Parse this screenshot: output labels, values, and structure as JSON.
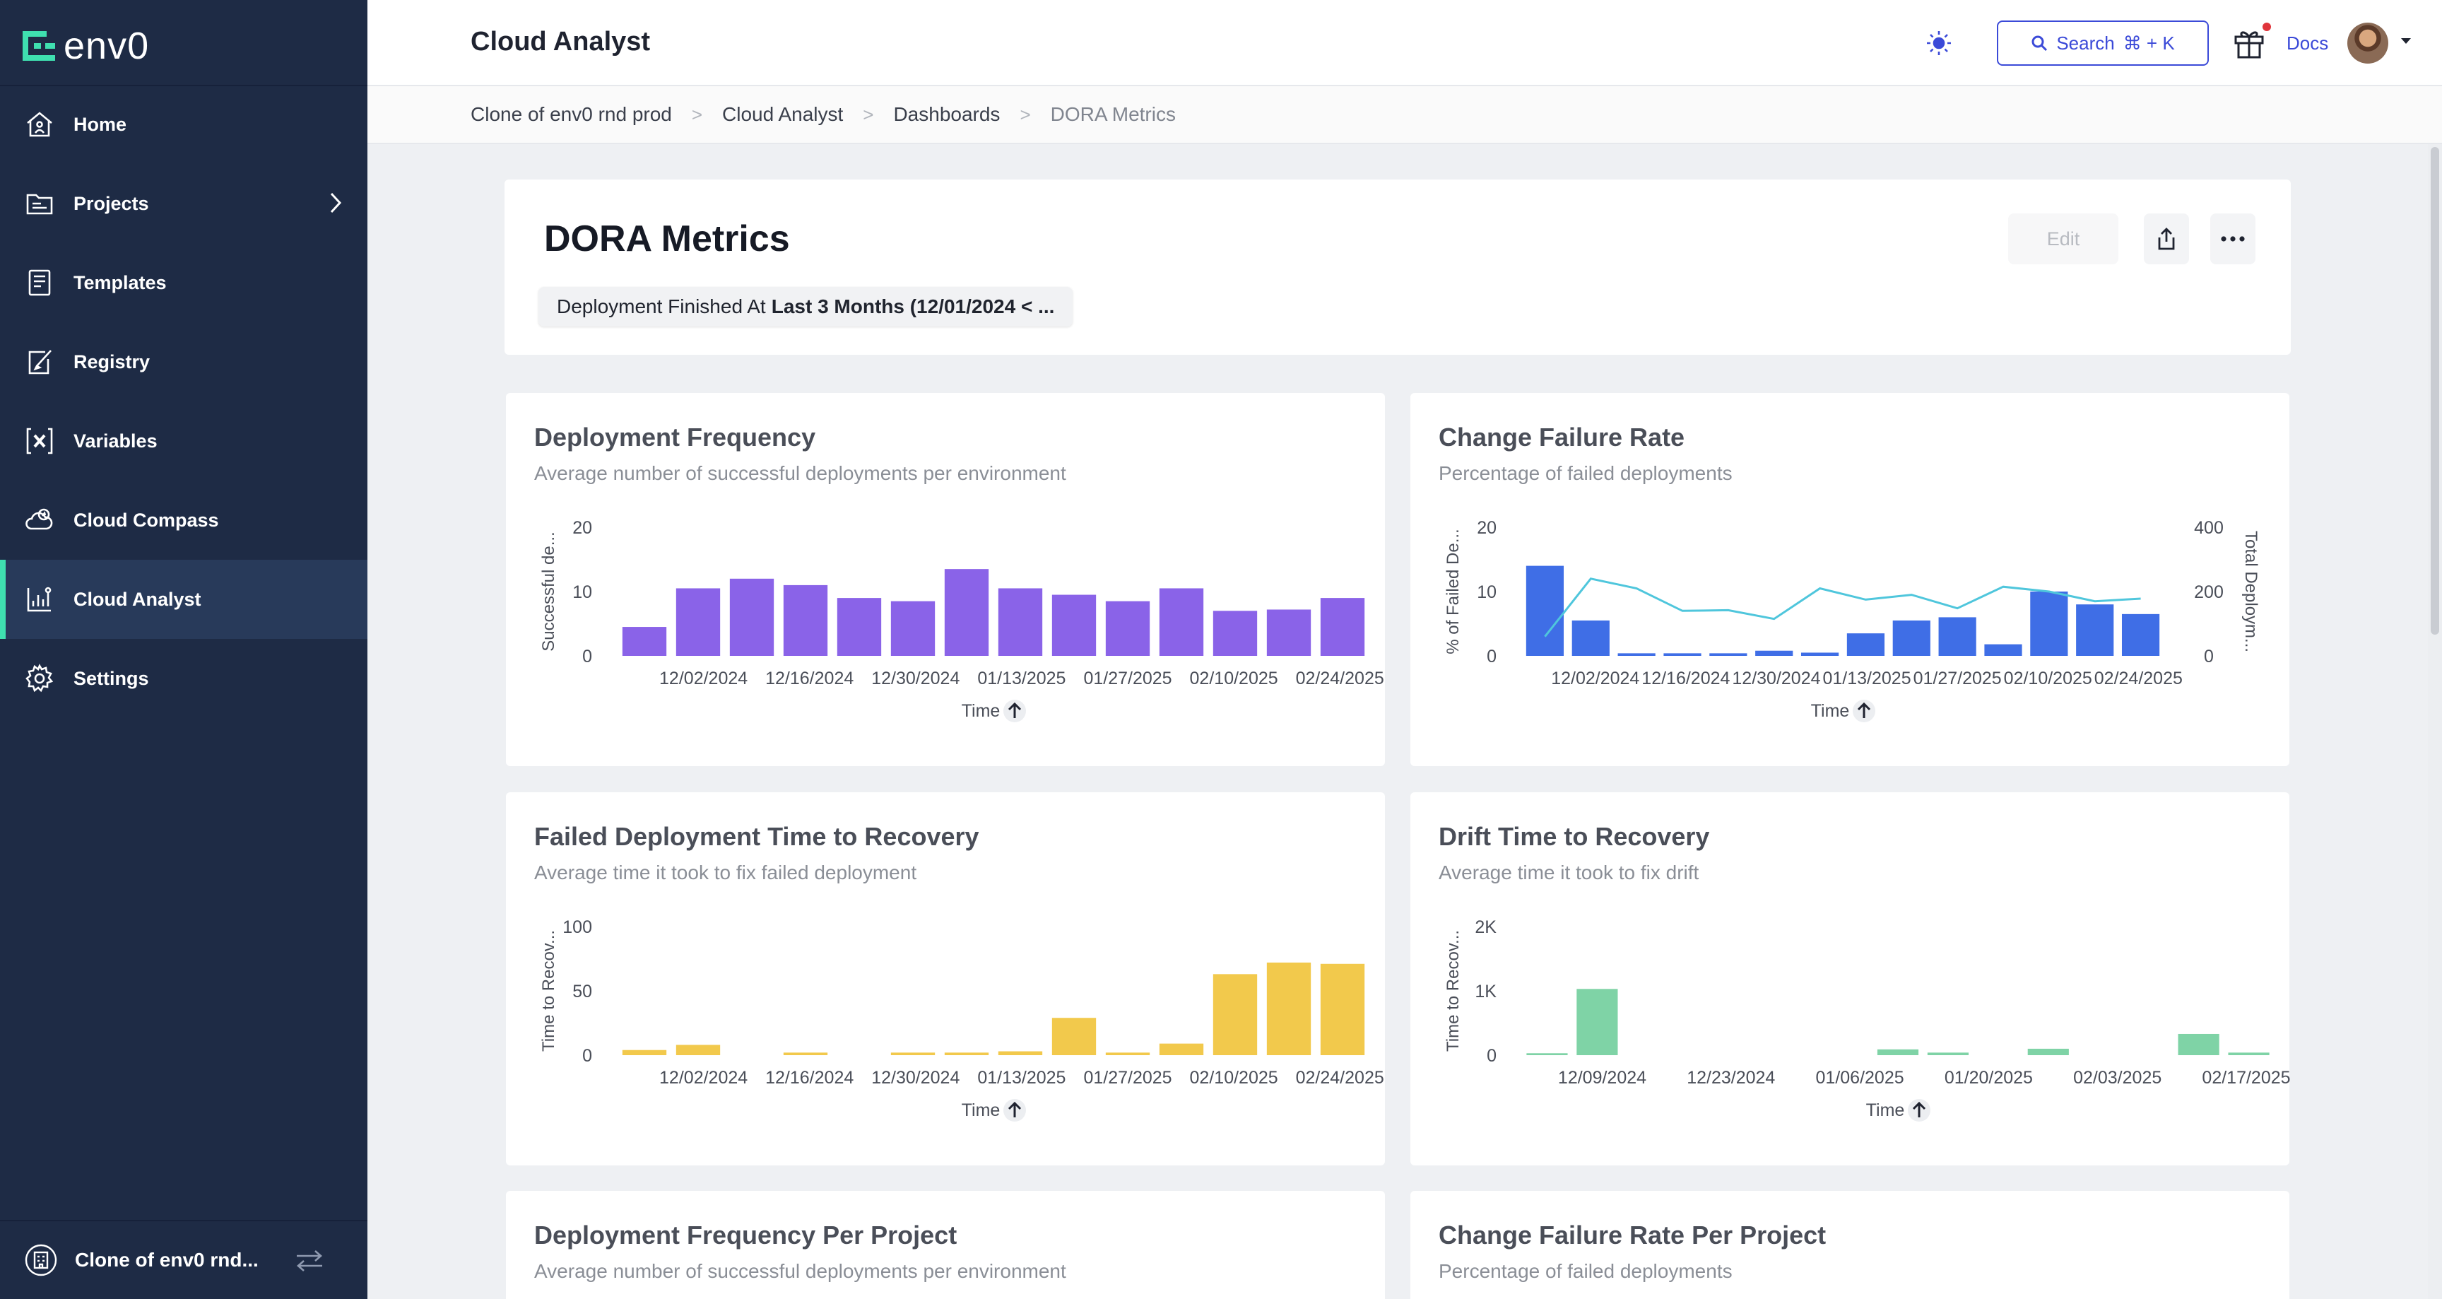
{
  "app": {
    "logo_text": "env0",
    "page_title": "Cloud Analyst",
    "search_label": "Search",
    "search_shortcut": "⌘ + K",
    "docs_label": "Docs"
  },
  "sidebar": {
    "items": [
      {
        "label": "Home",
        "icon": "home-icon"
      },
      {
        "label": "Projects",
        "icon": "projects-icon"
      },
      {
        "label": "Templates",
        "icon": "templates-icon"
      },
      {
        "label": "Registry",
        "icon": "registry-icon"
      },
      {
        "label": "Variables",
        "icon": "variables-icon"
      },
      {
        "label": "Cloud Compass",
        "icon": "cloud-compass-icon"
      },
      {
        "label": "Cloud Analyst",
        "icon": "cloud-analyst-icon",
        "active": true
      },
      {
        "label": "Settings",
        "icon": "settings-icon"
      }
    ],
    "org_label": "Clone of env0 rnd..."
  },
  "breadcrumb": [
    "Clone of env0 rnd prod",
    "Cloud Analyst",
    "Dashboards",
    "DORA Metrics"
  ],
  "dashboard": {
    "title": "DORA Metrics",
    "filter_prefix": "Deployment Finished At",
    "filter_value": "Last 3 Months (12/01/2024 < ...",
    "edit_label": "Edit"
  },
  "colors": {
    "sidebar_bg": "#1e2b45",
    "accent_green": "#3fe0b0",
    "link_blue": "#3b4ad8",
    "purple": "#8a63e8",
    "blue": "#3f6ee6",
    "line_cyan": "#4fc6dc",
    "yellow": "#f2c94c",
    "green": "#7fd3a6"
  },
  "cards": [
    {
      "title": "Deployment Frequency",
      "subtitle": "Average number of successful deployments per environment",
      "chart_data": {
        "type": "bar",
        "color": "#8a63e8",
        "ylabel": "Successful de...",
        "xlabel": "Time",
        "ylim": [
          0,
          20
        ],
        "yticks": [
          "0",
          "10",
          "20"
        ],
        "values": [
          4.5,
          10.5,
          12,
          11,
          9,
          8.5,
          13.5,
          10.5,
          9.5,
          8.5,
          10.5,
          7,
          7.2,
          9
        ],
        "xtick_labels": [
          "12/02/2024",
          "12/16/2024",
          "12/30/2024",
          "01/13/2025",
          "01/27/2025",
          "02/10/2025",
          "02/24/2025"
        ]
      }
    },
    {
      "title": "Change Failure Rate",
      "subtitle": "Percentage of failed deployments",
      "chart_data": {
        "type": "bar+line",
        "color": "#3f6ee6",
        "line_color": "#4fc6dc",
        "ylabel": "% of Failed De...",
        "y2label": "Total Deploym...",
        "xlabel": "Time",
        "ylim": [
          0,
          20
        ],
        "yticks": [
          "0",
          "10",
          "20"
        ],
        "y2lim": [
          0,
          400
        ],
        "y2ticks": [
          "0",
          "200",
          "400"
        ],
        "values": [
          14,
          5.5,
          0.4,
          0.4,
          0.4,
          0.8,
          0.5,
          3.5,
          5.5,
          6,
          1.8,
          10,
          8,
          6.5
        ],
        "line_values": [
          60,
          240,
          210,
          140,
          142,
          115,
          210,
          175,
          190,
          148,
          215,
          200,
          170,
          178
        ],
        "xtick_labels": [
          "12/02/2024",
          "12/16/2024",
          "12/30/2024",
          "01/13/2025",
          "01/27/2025",
          "02/10/2025",
          "02/24/2025"
        ]
      }
    },
    {
      "title": "Failed Deployment Time to Recovery",
      "subtitle": "Average time it took to fix failed deployment",
      "chart_data": {
        "type": "bar",
        "color": "#f2c94c",
        "ylabel": "Time to Recov...",
        "xlabel": "Time",
        "ylim": [
          0,
          100
        ],
        "yticks": [
          "0",
          "50",
          "100"
        ],
        "values": [
          4,
          8,
          0,
          2,
          0,
          2,
          2,
          3,
          29,
          2,
          9,
          63,
          72,
          71
        ],
        "xtick_labels": [
          "12/02/2024",
          "12/16/2024",
          "12/30/2024",
          "01/13/2025",
          "01/27/2025",
          "02/10/2025",
          "02/24/2025"
        ]
      }
    },
    {
      "title": "Drift Time to Recovery",
      "subtitle": "Average time it took to fix drift",
      "chart_data": {
        "type": "bar",
        "color": "#7fd3a6",
        "ylabel": "Time to Recov...",
        "xlabel": "Time",
        "ylim": [
          0,
          2000
        ],
        "yticks": [
          "0",
          "1K",
          "2K"
        ],
        "values": [
          30,
          1030,
          0,
          0,
          0,
          0,
          0,
          90,
          40,
          0,
          100,
          0,
          0,
          330,
          40
        ],
        "xtick_labels": [
          "12/09/2024",
          "12/23/2024",
          "01/06/2025",
          "01/20/2025",
          "02/03/2025",
          "02/17/2025"
        ]
      }
    },
    {
      "title": "Deployment Frequency Per Project",
      "subtitle": "Average number of successful deployments per environment"
    },
    {
      "title": "Change Failure Rate Per Project",
      "subtitle": "Percentage of failed deployments"
    }
  ]
}
